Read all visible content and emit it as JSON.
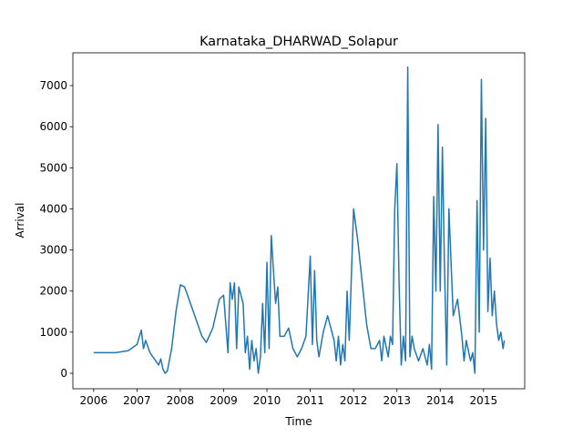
{
  "chart_data": {
    "type": "line",
    "title": "Karnataka_DHARWAD_Solapur",
    "x_label": "Time",
    "y_label": "Arrival",
    "x": [
      2006.0,
      2006.5,
      2006.8,
      2007.0,
      2007.1,
      2007.15,
      2007.2,
      2007.3,
      2007.4,
      2007.5,
      2007.55,
      2007.6,
      2007.65,
      2007.7,
      2007.8,
      2007.9,
      2008.0,
      2008.1,
      2008.3,
      2008.5,
      2008.6,
      2008.75,
      2008.9,
      2009.0,
      2009.1,
      2009.15,
      2009.2,
      2009.25,
      2009.3,
      2009.35,
      2009.45,
      2009.5,
      2009.55,
      2009.6,
      2009.65,
      2009.7,
      2009.75,
      2009.8,
      2009.85,
      2009.9,
      2009.95,
      2010.0,
      2010.05,
      2010.1,
      2010.15,
      2010.2,
      2010.25,
      2010.3,
      2010.4,
      2010.5,
      2010.6,
      2010.7,
      2010.8,
      2010.9,
      2011.0,
      2011.05,
      2011.1,
      2011.15,
      2011.2,
      2011.3,
      2011.4,
      2011.5,
      2011.55,
      2011.6,
      2011.65,
      2011.7,
      2011.75,
      2011.8,
      2011.85,
      2011.9,
      2012.0,
      2012.1,
      2012.3,
      2012.4,
      2012.5,
      2012.6,
      2012.65,
      2012.7,
      2012.8,
      2012.85,
      2012.9,
      2012.95,
      2013.0,
      2013.05,
      2013.1,
      2013.15,
      2013.2,
      2013.25,
      2013.3,
      2013.35,
      2013.4,
      2013.5,
      2013.6,
      2013.7,
      2013.75,
      2013.8,
      2013.85,
      2013.9,
      2013.95,
      2014.0,
      2014.05,
      2014.1,
      2014.15,
      2014.2,
      2014.3,
      2014.4,
      2014.5,
      2014.55,
      2014.6,
      2014.7,
      2014.75,
      2014.8,
      2014.85,
      2014.9,
      2014.95,
      2015.0,
      2015.05,
      2015.1,
      2015.15,
      2015.2,
      2015.25,
      2015.3,
      2015.35,
      2015.4,
      2015.45,
      2015.48
    ],
    "series": [
      {
        "color": "#1f77b4",
        "values": [
          500,
          500,
          550,
          700,
          1050,
          600,
          800,
          500,
          350,
          200,
          350,
          100,
          0,
          50,
          600,
          1500,
          2150,
          2100,
          1500,
          900,
          750,
          1100,
          1800,
          1900,
          500,
          2200,
          1800,
          2200,
          600,
          2100,
          1700,
          500,
          900,
          100,
          800,
          300,
          600,
          0,
          400,
          1700,
          500,
          2700,
          600,
          3350,
          2500,
          1700,
          2100,
          900,
          900,
          1100,
          600,
          400,
          600,
          900,
          2850,
          700,
          2500,
          800,
          400,
          1000,
          1400,
          1000,
          800,
          300,
          900,
          200,
          700,
          300,
          2000,
          800,
          4000,
          3200,
          1200,
          600,
          600,
          800,
          300,
          900,
          400,
          900,
          700,
          4000,
          5100,
          2200,
          200,
          900,
          300,
          7450,
          400,
          900,
          600,
          300,
          600,
          200,
          700,
          100,
          4300,
          2000,
          6050,
          2000,
          5500,
          2500,
          200,
          4000,
          1400,
          1800,
          900,
          300,
          800,
          300,
          500,
          0,
          4200,
          1000,
          7150,
          3000,
          6200,
          1500,
          2800,
          1400,
          2000,
          1200,
          800,
          1000,
          600,
          800
        ]
      }
    ],
    "xlim": [
      2005.52,
      2015.95
    ],
    "xticks": [
      2006,
      2007,
      2008,
      2009,
      2010,
      2011,
      2012,
      2013,
      2014,
      2015
    ],
    "ylim": [
      -377,
      7798
    ],
    "yticks": [
      0,
      1000,
      2000,
      3000,
      4000,
      5000,
      6000,
      7000
    ]
  }
}
